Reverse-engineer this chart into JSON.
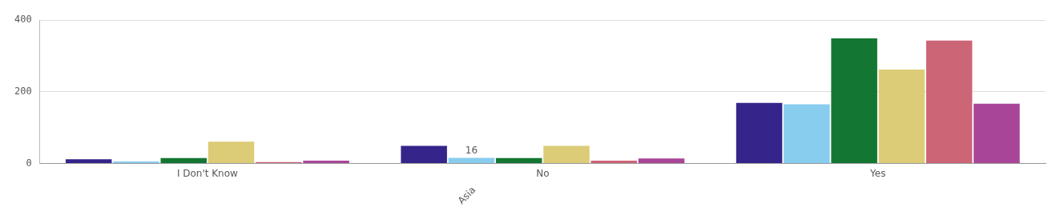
{
  "chart_data": {
    "type": "bar",
    "categories": [
      "I Don't Know",
      "No",
      "Yes"
    ],
    "series": [
      {
        "color": "#35248a",
        "values": [
          12,
          49,
          169
        ]
      },
      {
        "color": "#88cdee",
        "values": [
          6,
          16,
          165
        ],
        "value_labels": [
          null,
          "16",
          null
        ]
      },
      {
        "color": "#137733",
        "values": [
          15,
          15,
          349
        ]
      },
      {
        "color": "#dccc77",
        "values": [
          61,
          49,
          262
        ]
      },
      {
        "color": "#cc6677",
        "values": [
          4,
          8,
          343
        ]
      },
      {
        "color": "#a94598",
        "values": [
          8,
          14,
          167
        ]
      }
    ],
    "ylim": [
      0,
      400
    ],
    "yticks": [
      0,
      200,
      400
    ],
    "grid": "y",
    "legend": false,
    "annotations": [
      "Asia"
    ]
  }
}
